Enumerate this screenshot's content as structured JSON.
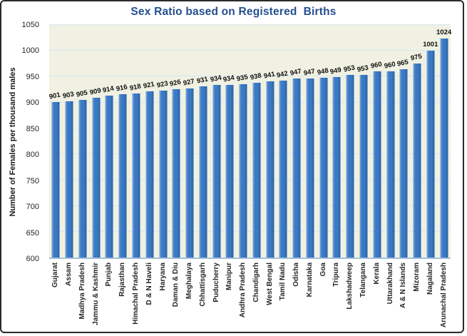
{
  "title": "Sex Ratio based on Registered  Births",
  "colors": {
    "title": "#234f8e",
    "bar_main": "#3b79c4",
    "bar_light": "#7aa8dc",
    "bar_dark": "#2b62a4",
    "plot_bg": "#f0f1e2",
    "gridline": "#d9e6f2",
    "axis_line": "#a3c0dc"
  },
  "chart_data": {
    "type": "bar",
    "title": "Sex Ratio based on Registered  Births",
    "xlabel": "",
    "ylabel": "Number of Females per thousand males",
    "ylim": [
      600,
      1050
    ],
    "yticks": [
      600,
      650,
      700,
      750,
      800,
      850,
      900,
      950,
      1000,
      1050
    ],
    "grid": true,
    "legend": false,
    "data_labels": true,
    "categories": [
      "Gujarat",
      "Assam",
      "Madhya Pradesh",
      "Jammu & Kashmir",
      "Punjab",
      "Rajasthan",
      "Himachal Pradesh",
      "D & N Haveli",
      "Haryana",
      "Daman & Diu",
      "Meghalaya",
      "Chhattisgarh",
      "Puducherry",
      "Manipur",
      "Andhra Pradesh",
      "Chandigarh",
      "West Bengal",
      "Tamil Nadu",
      "Odisha",
      "Karnataka",
      "Goa",
      "Tripura",
      "Lakshadweep",
      "Telangana",
      "Kerala",
      "Uttarakhand",
      "A & N Islands",
      "Mizoram",
      "Nagaland",
      "Arunachal Pradesh"
    ],
    "values": [
      901,
      903,
      905,
      909,
      914,
      916,
      918,
      921,
      923,
      926,
      927,
      931,
      934,
      934,
      935,
      938,
      941,
      942,
      947,
      947,
      948,
      949,
      953,
      953,
      960,
      960,
      965,
      975,
      1001,
      1024
    ]
  }
}
